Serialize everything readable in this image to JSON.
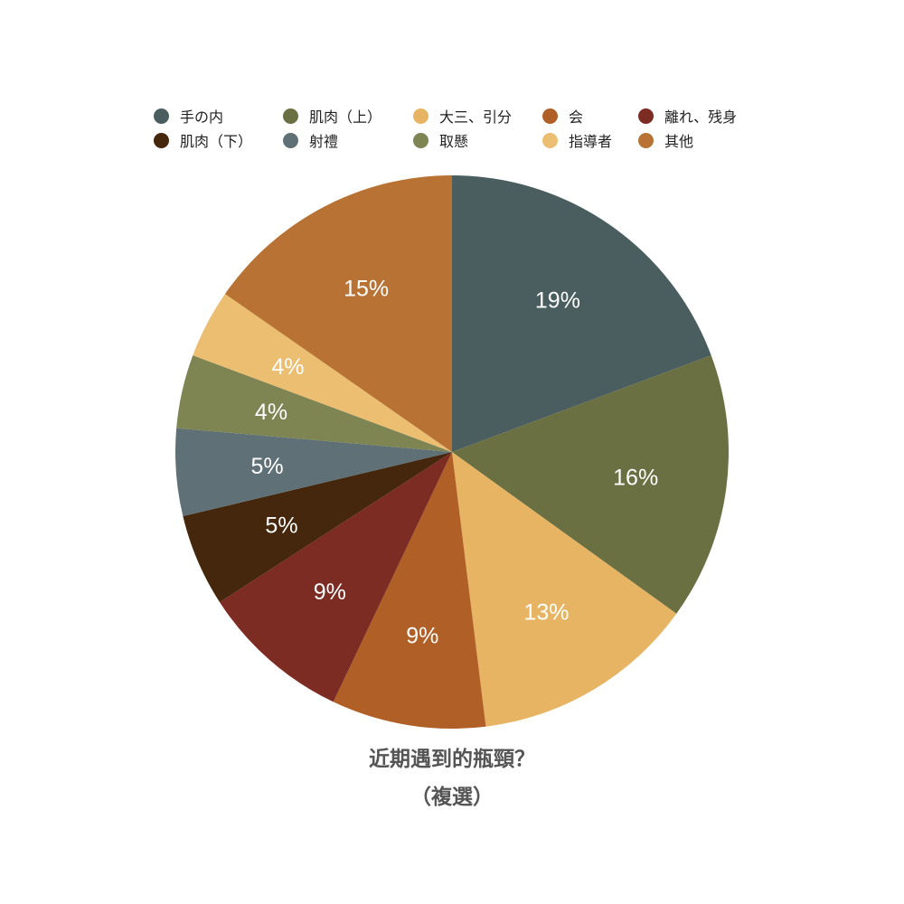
{
  "chart_data": {
    "type": "pie",
    "title": [
      "近期遇到的瓶頸？",
      "（複選）"
    ],
    "legend_position": "top",
    "slices": [
      {
        "label": "手の内",
        "value": 19.3,
        "display": "19%",
        "color": "#4b5e5f"
      },
      {
        "label": "肌肉（上）",
        "value": 15.6,
        "display": "16%",
        "color": "#6b7043"
      },
      {
        "label": "大三、引分",
        "value": 13.1,
        "display": "13%",
        "color": "#e6b462"
      },
      {
        "label": "会",
        "value": 9.0,
        "display": "9%",
        "color": "#b06026"
      },
      {
        "label": "離れ、残身",
        "value": 8.8,
        "display": "9%",
        "color": "#7c2c22"
      },
      {
        "label": "肌肉（下）",
        "value": 5.4,
        "display": "5%",
        "color": "#45270d"
      },
      {
        "label": "射禮",
        "value": 5.1,
        "display": "5%",
        "color": "#5f7176"
      },
      {
        "label": "取懸",
        "value": 4.3,
        "display": "4%",
        "color": "#7e8452"
      },
      {
        "label": "指導者",
        "value": 4.0,
        "display": "4%",
        "color": "#ebbe72"
      },
      {
        "label": "其他",
        "value": 15.3,
        "display": "15%",
        "color": "#b87334"
      }
    ]
  }
}
